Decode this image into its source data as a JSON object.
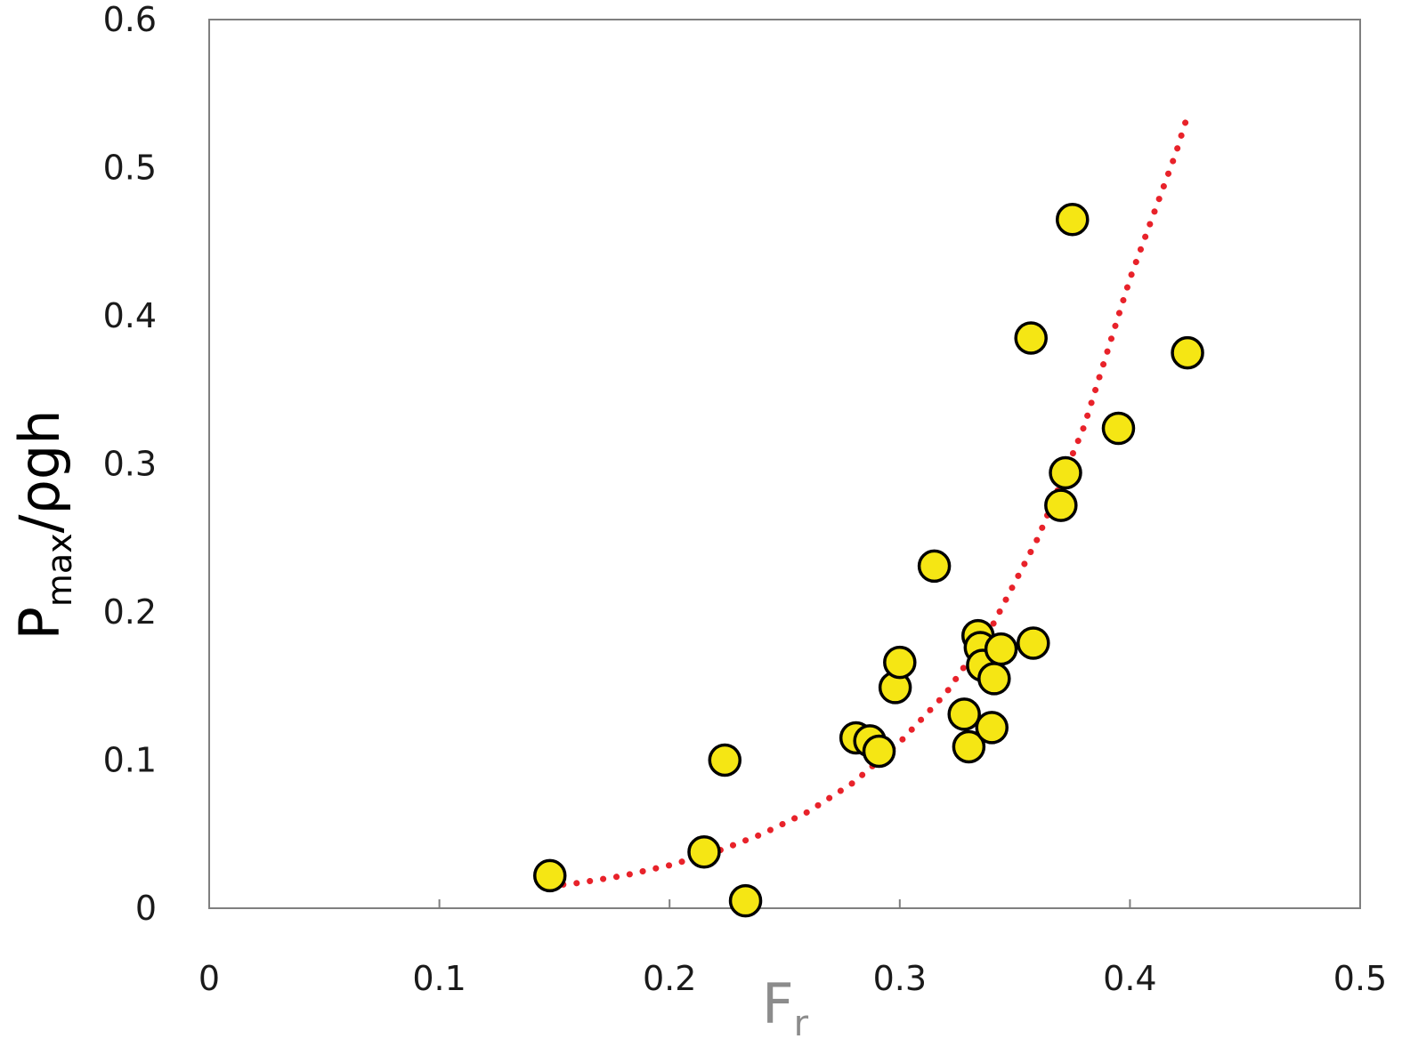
{
  "chart_data": {
    "type": "scatter",
    "xlabel": {
      "main": "F",
      "sub": "r"
    },
    "ylabel": {
      "main": "P",
      "sub": "max",
      "rest": "/ρgh"
    },
    "xlim": [
      0,
      0.5
    ],
    "ylim": [
      0,
      0.6
    ],
    "xticks": [
      "0",
      "0.1",
      "0.2",
      "0.3",
      "0.4",
      "0.5"
    ],
    "yticks": [
      "0",
      "0.1",
      "0.2",
      "0.3",
      "0.4",
      "0.5",
      "0.6"
    ],
    "grid": false,
    "legend": "none",
    "series": [
      {
        "kind": "points",
        "marker_color": "#f5e614",
        "marker_edge": "#000000",
        "points": [
          [
            0.148,
            0.022
          ],
          [
            0.215,
            0.038
          ],
          [
            0.224,
            0.1
          ],
          [
            0.233,
            0.005
          ],
          [
            0.281,
            0.115
          ],
          [
            0.287,
            0.113
          ],
          [
            0.291,
            0.106
          ],
          [
            0.298,
            0.149
          ],
          [
            0.3,
            0.166
          ],
          [
            0.315,
            0.231
          ],
          [
            0.328,
            0.131
          ],
          [
            0.33,
            0.109
          ],
          [
            0.334,
            0.184
          ],
          [
            0.335,
            0.176
          ],
          [
            0.336,
            0.164
          ],
          [
            0.34,
            0.122
          ],
          [
            0.341,
            0.155
          ],
          [
            0.344,
            0.175
          ],
          [
            0.357,
            0.385
          ],
          [
            0.358,
            0.179
          ],
          [
            0.37,
            0.272
          ],
          [
            0.372,
            0.294
          ],
          [
            0.375,
            0.465
          ],
          [
            0.395,
            0.324
          ],
          [
            0.425,
            0.375
          ]
        ]
      },
      {
        "kind": "trendline",
        "style": "dotted",
        "color": "#e8222a",
        "x": [
          0.148,
          0.16,
          0.18,
          0.2,
          0.22,
          0.24,
          0.26,
          0.28,
          0.3,
          0.32,
          0.34,
          0.36,
          0.38,
          0.4,
          0.42,
          0.425
        ],
        "y": [
          0.015,
          0.017,
          0.022,
          0.029,
          0.038,
          0.05,
          0.065,
          0.085,
          0.112,
          0.145,
          0.19,
          0.25,
          0.325,
          0.425,
          0.51,
          0.535
        ]
      }
    ]
  }
}
